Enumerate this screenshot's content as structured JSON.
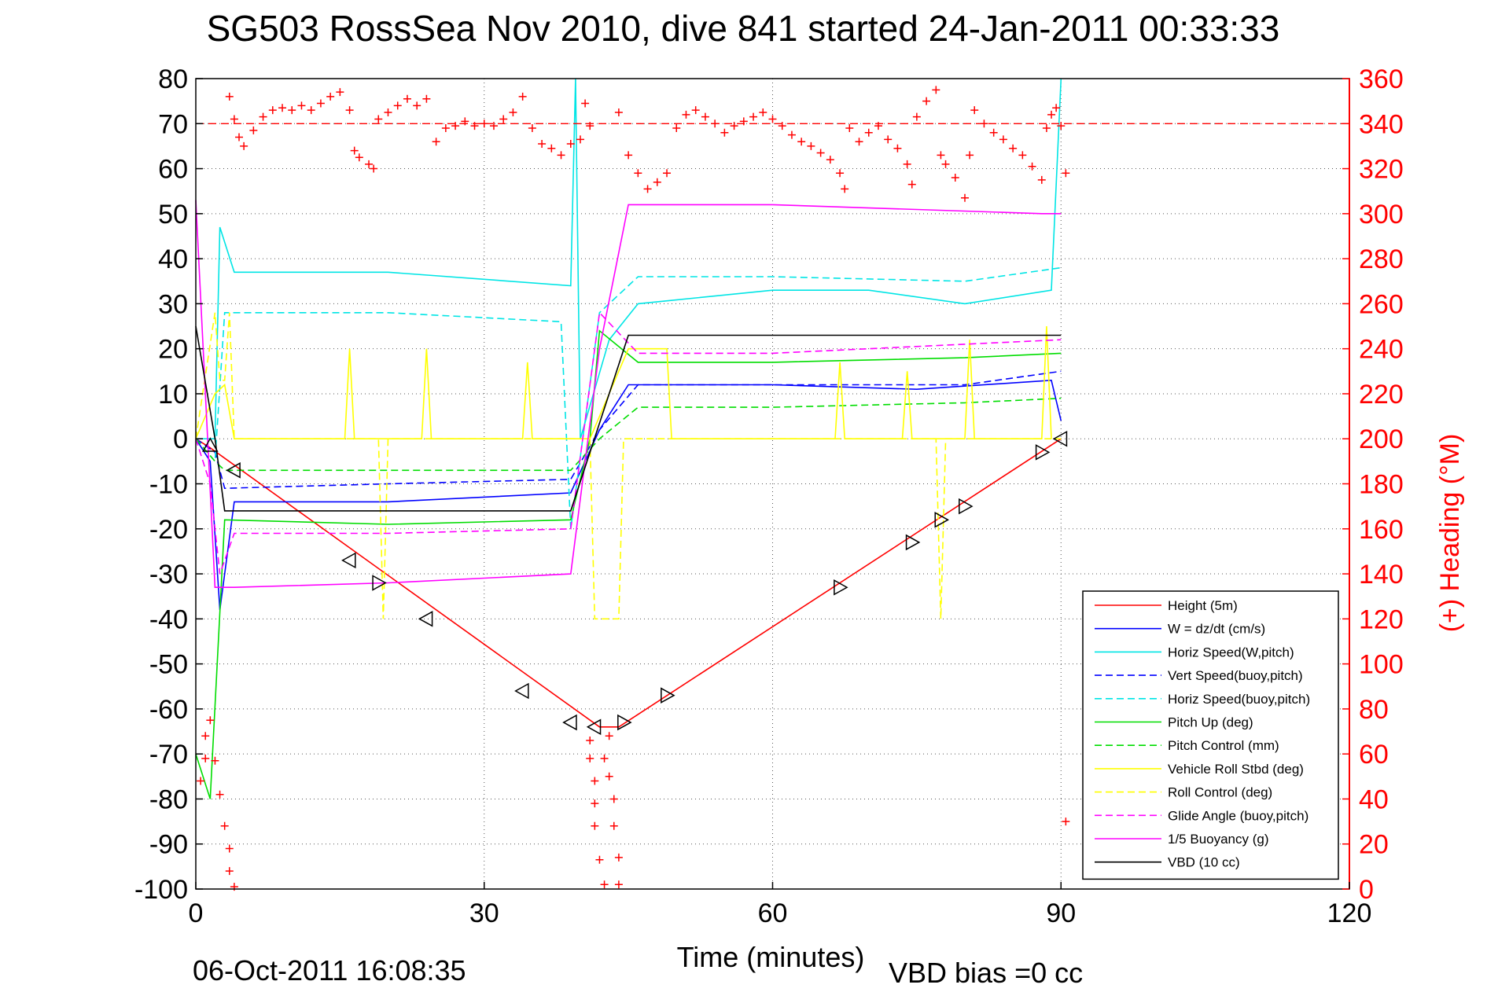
{
  "chart_data": {
    "type": "line",
    "title": "SG503 RossSea Nov 2010, dive 841 started 24-Jan-2011 00:33:33",
    "xlabel": "Time (minutes)",
    "ylabel_right": "(+) Heading (°M)",
    "xlim": [
      0,
      120
    ],
    "ylim": [
      -100,
      80
    ],
    "ylim_right": [
      0,
      360
    ],
    "xticks": [
      "0",
      "30",
      "60",
      "90",
      "120"
    ],
    "yticks": [
      "80",
      "70",
      "60",
      "50",
      "40",
      "30",
      "20",
      "10",
      "0",
      "-10",
      "-20",
      "-30",
      "-40",
      "-50",
      "-60",
      "-70",
      "-80",
      "-90",
      "-100"
    ],
    "yticks_right": [
      "360",
      "340",
      "320",
      "300",
      "280",
      "260",
      "240",
      "220",
      "200",
      "180",
      "160",
      "140",
      "120",
      "100",
      "80",
      "60",
      "40",
      "20",
      "0"
    ],
    "grid": true,
    "legend_position": "bottom-right",
    "footer_date": "06-Oct-2011 16:08:35",
    "vbd_bias": "VBD bias =0 cc",
    "colors": {
      "height": "#ff0000",
      "w": "#0000ff",
      "horiz": "#00e5e5",
      "pitch": "#00dd00",
      "roll": "#ffff00",
      "glide": "#ff00ff",
      "vbd": "#000000",
      "heading": "#ff0000",
      "heading_axis": "#ff0000"
    },
    "series": [
      {
        "name": "Height (5m)",
        "color": "#ff0000",
        "dash": false,
        "x": [
          0,
          1.5,
          42,
          44,
          90
        ],
        "y": [
          0,
          -2,
          -64,
          -64,
          0
        ]
      },
      {
        "name": "W = dz/dt (cm/s)",
        "color": "#0000ff",
        "dash": false,
        "x": [
          0,
          1.5,
          2.5,
          4,
          20,
          39,
          42,
          45,
          60,
          75,
          89,
          90
        ],
        "y": [
          0,
          -5,
          -38,
          -14,
          -14,
          -12,
          2,
          12,
          12,
          11,
          13,
          4
        ]
      },
      {
        "name": "Horiz Speed(W,pitch)",
        "color": "#00e5e5",
        "dash": false,
        "x": [
          0,
          2,
          2.5,
          4,
          20,
          39,
          39.5,
          40,
          43,
          46,
          60,
          70,
          80,
          89,
          90
        ],
        "y": [
          0,
          0,
          47,
          37,
          37,
          34,
          80,
          0,
          22,
          30,
          33,
          33,
          30,
          33,
          80
        ]
      },
      {
        "name": "Vert Speed(buoy,pitch)",
        "color": "#0000ff",
        "dash": true,
        "x": [
          0,
          2,
          3,
          20,
          39,
          42,
          46,
          60,
          80,
          90
        ],
        "y": [
          0,
          -3,
          -11,
          -10,
          -9,
          2,
          12,
          12,
          12,
          15
        ]
      },
      {
        "name": "Horiz Speed(buoy,pitch)",
        "color": "#00e5e5",
        "dash": true,
        "x": [
          0,
          2,
          3,
          20,
          38,
          39,
          42,
          46,
          60,
          80,
          90
        ],
        "y": [
          0,
          -5,
          28,
          28,
          26,
          -20,
          28,
          36,
          36,
          35,
          38
        ]
      },
      {
        "name": "Pitch Up (deg)",
        "color": "#00dd00",
        "dash": false,
        "x": [
          0,
          1.5,
          3,
          20,
          39,
          41,
          42,
          46,
          60,
          80,
          90
        ],
        "y": [
          -70,
          -80,
          -18,
          -19,
          -18,
          0,
          24,
          17,
          17,
          18,
          19
        ]
      },
      {
        "name": "Pitch Control (mm)",
        "color": "#00dd00",
        "dash": true,
        "x": [
          0,
          2,
          3,
          20,
          39,
          42,
          46,
          60,
          80,
          90
        ],
        "y": [
          0,
          -5,
          -7,
          -7,
          -7,
          0,
          7,
          7,
          8,
          9
        ]
      },
      {
        "name": "Vehicle Roll Stbd (deg)",
        "color": "#ffff00",
        "dash": false,
        "x": [
          0,
          2,
          3,
          4,
          5,
          15.5,
          16,
          16.5,
          17,
          23.5,
          24,
          24.5,
          34,
          34.5,
          35,
          41,
          45,
          46,
          49,
          49.5,
          50,
          66.5,
          67,
          67.5,
          73.5,
          74,
          74.5,
          80,
          80.5,
          81,
          88,
          88.5,
          89
        ],
        "y": [
          0,
          10,
          12,
          0,
          0,
          0,
          20,
          0,
          0,
          0,
          20,
          0,
          0,
          17,
          0,
          0,
          20,
          20,
          20,
          0,
          0,
          0,
          17,
          0,
          0,
          15,
          0,
          0,
          22,
          0,
          0,
          25,
          0
        ]
      },
      {
        "name": "Roll Control (deg)",
        "color": "#ffff00",
        "dash": true,
        "x": [
          0,
          2,
          2.5,
          3,
          3.5,
          4,
          19,
          19.5,
          20,
          41,
          41.5,
          44,
          44.5,
          77,
          77.5,
          78,
          90
        ],
        "y": [
          0,
          28,
          13,
          13,
          28,
          0,
          0,
          -40,
          0,
          0,
          -40,
          -40,
          0,
          0,
          -40,
          0,
          0
        ]
      },
      {
        "name": "Glide Angle (buoy,pitch)",
        "color": "#ff00ff",
        "dash": true,
        "x": [
          0,
          1.5,
          2.5,
          4,
          20,
          39,
          42,
          46,
          60,
          80,
          90
        ],
        "y": [
          0,
          -10,
          -30,
          -21,
          -21,
          -20,
          28,
          19,
          19,
          21,
          22
        ]
      },
      {
        "name": "1/5 Buoyancy (g)",
        "color": "#ff00ff",
        "dash": false,
        "x": [
          0,
          2,
          4,
          20,
          39,
          42,
          45,
          60,
          88,
          90
        ],
        "y": [
          53,
          -33,
          -33,
          -32,
          -30,
          20,
          52,
          52,
          50,
          50
        ]
      },
      {
        "name": "VBD (10 cc)",
        "color": "#000000",
        "dash": false,
        "x": [
          0,
          2,
          3,
          39,
          45,
          90
        ],
        "y": [
          25,
          0,
          -16,
          -16,
          23,
          23
        ]
      }
    ],
    "heading_reference": 340,
    "heading_points": [
      {
        "x": 3.5,
        "y": 352
      },
      {
        "x": 4,
        "y": 342
      },
      {
        "x": 4.5,
        "y": 334
      },
      {
        "x": 5,
        "y": 330
      },
      {
        "x": 6,
        "y": 337
      },
      {
        "x": 7,
        "y": 343
      },
      {
        "x": 8,
        "y": 346
      },
      {
        "x": 9,
        "y": 347
      },
      {
        "x": 10,
        "y": 346
      },
      {
        "x": 11,
        "y": 348
      },
      {
        "x": 12,
        "y": 346
      },
      {
        "x": 13,
        "y": 349
      },
      {
        "x": 14,
        "y": 352
      },
      {
        "x": 15,
        "y": 354
      },
      {
        "x": 16,
        "y": 346
      },
      {
        "x": 16.5,
        "y": 328
      },
      {
        "x": 17,
        "y": 325
      },
      {
        "x": 18,
        "y": 322
      },
      {
        "x": 18.5,
        "y": 320
      },
      {
        "x": 19,
        "y": 342
      },
      {
        "x": 20,
        "y": 345
      },
      {
        "x": 21,
        "y": 348
      },
      {
        "x": 22,
        "y": 351
      },
      {
        "x": 23,
        "y": 348
      },
      {
        "x": 24,
        "y": 351
      },
      {
        "x": 25,
        "y": 332
      },
      {
        "x": 26,
        "y": 338
      },
      {
        "x": 27,
        "y": 339
      },
      {
        "x": 28,
        "y": 341
      },
      {
        "x": 29,
        "y": 339
      },
      {
        "x": 30,
        "y": 340
      },
      {
        "x": 31,
        "y": 339
      },
      {
        "x": 32,
        "y": 342
      },
      {
        "x": 33,
        "y": 345
      },
      {
        "x": 34,
        "y": 352
      },
      {
        "x": 35,
        "y": 338
      },
      {
        "x": 36,
        "y": 331
      },
      {
        "x": 37,
        "y": 329
      },
      {
        "x": 38,
        "y": 326
      },
      {
        "x": 39,
        "y": 331
      },
      {
        "x": 40,
        "y": 333
      },
      {
        "x": 40.5,
        "y": 349
      },
      {
        "x": 41,
        "y": 339
      },
      {
        "x": 44,
        "y": 345
      },
      {
        "x": 45,
        "y": 326
      },
      {
        "x": 46,
        "y": 318
      },
      {
        "x": 47,
        "y": 311
      },
      {
        "x": 48,
        "y": 314
      },
      {
        "x": 49,
        "y": 318
      },
      {
        "x": 50,
        "y": 338
      },
      {
        "x": 51,
        "y": 344
      },
      {
        "x": 52,
        "y": 346
      },
      {
        "x": 53,
        "y": 343
      },
      {
        "x": 54,
        "y": 340
      },
      {
        "x": 55,
        "y": 336
      },
      {
        "x": 56,
        "y": 339
      },
      {
        "x": 57,
        "y": 341
      },
      {
        "x": 58,
        "y": 343
      },
      {
        "x": 59,
        "y": 345
      },
      {
        "x": 60,
        "y": 342
      },
      {
        "x": 61,
        "y": 339
      },
      {
        "x": 62,
        "y": 335
      },
      {
        "x": 63,
        "y": 332
      },
      {
        "x": 64,
        "y": 330
      },
      {
        "x": 65,
        "y": 327
      },
      {
        "x": 66,
        "y": 324
      },
      {
        "x": 67,
        "y": 318
      },
      {
        "x": 67.5,
        "y": 311
      },
      {
        "x": 68,
        "y": 338
      },
      {
        "x": 69,
        "y": 332
      },
      {
        "x": 70,
        "y": 336
      },
      {
        "x": 71,
        "y": 339
      },
      {
        "x": 72,
        "y": 333
      },
      {
        "x": 73,
        "y": 329
      },
      {
        "x": 74,
        "y": 322
      },
      {
        "x": 74.5,
        "y": 313
      },
      {
        "x": 75,
        "y": 343
      },
      {
        "x": 76,
        "y": 350
      },
      {
        "x": 77,
        "y": 355
      },
      {
        "x": 77.5,
        "y": 326
      },
      {
        "x": 78,
        "y": 322
      },
      {
        "x": 79,
        "y": 316
      },
      {
        "x": 80,
        "y": 307
      },
      {
        "x": 80.5,
        "y": 326
      },
      {
        "x": 81,
        "y": 346
      },
      {
        "x": 82,
        "y": 340
      },
      {
        "x": 83,
        "y": 336
      },
      {
        "x": 84,
        "y": 333
      },
      {
        "x": 85,
        "y": 329
      },
      {
        "x": 86,
        "y": 326
      },
      {
        "x": 87,
        "y": 321
      },
      {
        "x": 88,
        "y": 315
      },
      {
        "x": 88.5,
        "y": 338
      },
      {
        "x": 89,
        "y": 344
      },
      {
        "x": 89.5,
        "y": 347
      },
      {
        "x": 90,
        "y": 339
      },
      {
        "x": 90.5,
        "y": 318
      },
      {
        "x": 90.5,
        "y": 30
      },
      {
        "x": 0.5,
        "y": 48
      },
      {
        "x": 1,
        "y": 68
      },
      {
        "x": 1,
        "y": 58
      },
      {
        "x": 1.5,
        "y": 75
      },
      {
        "x": 2,
        "y": 57
      },
      {
        "x": 2.5,
        "y": 42
      },
      {
        "x": 3,
        "y": 28
      },
      {
        "x": 3.5,
        "y": 18
      },
      {
        "x": 3.5,
        "y": 8
      },
      {
        "x": 4,
        "y": 1
      },
      {
        "x": 41,
        "y": 66
      },
      {
        "x": 41,
        "y": 58
      },
      {
        "x": 41.5,
        "y": 48
      },
      {
        "x": 41.5,
        "y": 38
      },
      {
        "x": 41.5,
        "y": 28
      },
      {
        "x": 42,
        "y": 13
      },
      {
        "x": 42.5,
        "y": 58
      },
      {
        "x": 42.5,
        "y": 2
      },
      {
        "x": 43,
        "y": 68
      },
      {
        "x": 43,
        "y": 50
      },
      {
        "x": 43.5,
        "y": 40
      },
      {
        "x": 43.5,
        "y": 28
      },
      {
        "x": 44,
        "y": 14
      },
      {
        "x": 44,
        "y": 2
      }
    ],
    "dive_markers": [
      {
        "x": 1.5,
        "y": -1.5,
        "dir": "up"
      },
      {
        "x": 4,
        "y": -7,
        "dir": "left"
      },
      {
        "x": 16,
        "y": -27,
        "dir": "left"
      },
      {
        "x": 19,
        "y": -32,
        "dir": "right"
      },
      {
        "x": 24,
        "y": -40,
        "dir": "left"
      },
      {
        "x": 34,
        "y": -56,
        "dir": "left"
      },
      {
        "x": 39,
        "y": -63,
        "dir": "left"
      },
      {
        "x": 41.5,
        "y": -64,
        "dir": "left"
      },
      {
        "x": 44.5,
        "y": -63,
        "dir": "right"
      },
      {
        "x": 49,
        "y": -57,
        "dir": "right"
      },
      {
        "x": 67,
        "y": -33,
        "dir": "right"
      },
      {
        "x": 74.5,
        "y": -23,
        "dir": "right"
      },
      {
        "x": 77.5,
        "y": -18,
        "dir": "right"
      },
      {
        "x": 80,
        "y": -15,
        "dir": "right"
      },
      {
        "x": 88,
        "y": -3,
        "dir": "right"
      },
      {
        "x": 90,
        "y": 0,
        "dir": "left"
      }
    ]
  }
}
